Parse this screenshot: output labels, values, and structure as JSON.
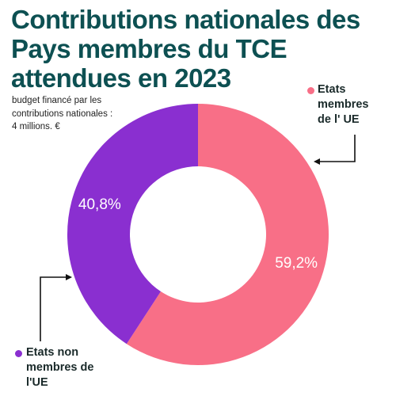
{
  "title_lines": [
    "Contributions nationales des",
    "Pays membres du TCE",
    "attendues en 2023"
  ],
  "subtitle_lines": [
    "budget financé par les",
    "contributions nationales :",
    "4 millions. €"
  ],
  "chart_data": {
    "type": "pie",
    "subtype": "donut",
    "title": "Contributions nationales des Pays membres du TCE attendues en 2023",
    "subtitle": "budget financé par les contributions nationales : 4 millions. €",
    "slices": [
      {
        "name": "Etats membres de l' UE",
        "value": 59.2,
        "label": "59,2%",
        "color": "#f86f87"
      },
      {
        "name": "Etats non membres de l'UE",
        "value": 40.8,
        "label": "40,8%",
        "color": "#8a2fd0"
      }
    ],
    "legend": [
      {
        "lines": [
          "Etats",
          "membres",
          "de l' UE"
        ],
        "color": "#f86f87"
      },
      {
        "lines": [
          "Etats non",
          "membres de",
          "l'UE"
        ],
        "color": "#8a2fd0"
      }
    ]
  }
}
